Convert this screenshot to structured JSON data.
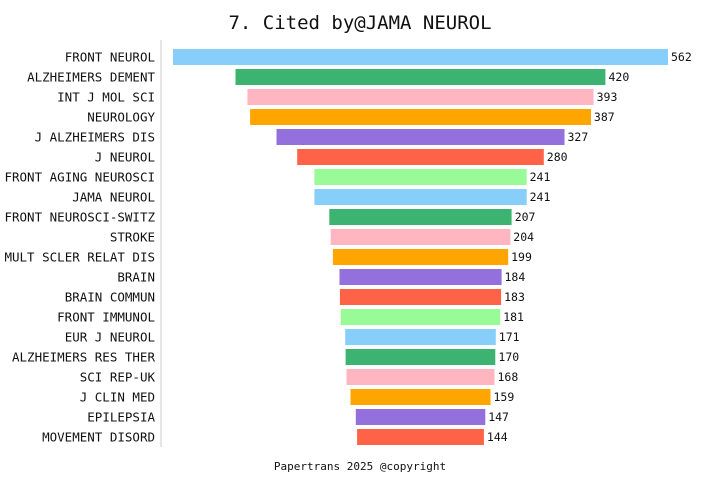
{
  "chart_data": {
    "type": "bar",
    "orientation": "horizontal",
    "layout": "centered-funnel",
    "title": "7. Cited by@JAMA NEUROL",
    "footer": "Papertrans 2025 @copyright",
    "categories": [
      "FRONT NEUROL",
      "ALZHEIMERS DEMENT",
      "INT J MOL SCI",
      "NEUROLOGY",
      "J ALZHEIMERS DIS",
      "J NEUROL",
      "FRONT AGING NEUROSCI",
      "JAMA NEUROL",
      "FRONT NEUROSCI-SWITZ",
      "STROKE",
      "MULT SCLER RELAT DIS",
      "BRAIN",
      "BRAIN COMMUN",
      "FRONT IMMUNOL",
      "EUR J NEUROL",
      "ALZHEIMERS RES THER",
      "SCI REP-UK",
      "J CLIN MED",
      "EPILEPSIA",
      "MOVEMENT DISORD"
    ],
    "values": [
      562,
      420,
      393,
      387,
      327,
      280,
      241,
      241,
      207,
      204,
      199,
      184,
      183,
      181,
      171,
      170,
      168,
      159,
      147,
      144
    ],
    "color_cycle": [
      "#87CEFA",
      "#3CB371",
      "#FFB6C1",
      "#FFA500",
      "#9370DB",
      "#FF6347",
      "#98FB98"
    ],
    "grid": false,
    "legend": "none"
  }
}
